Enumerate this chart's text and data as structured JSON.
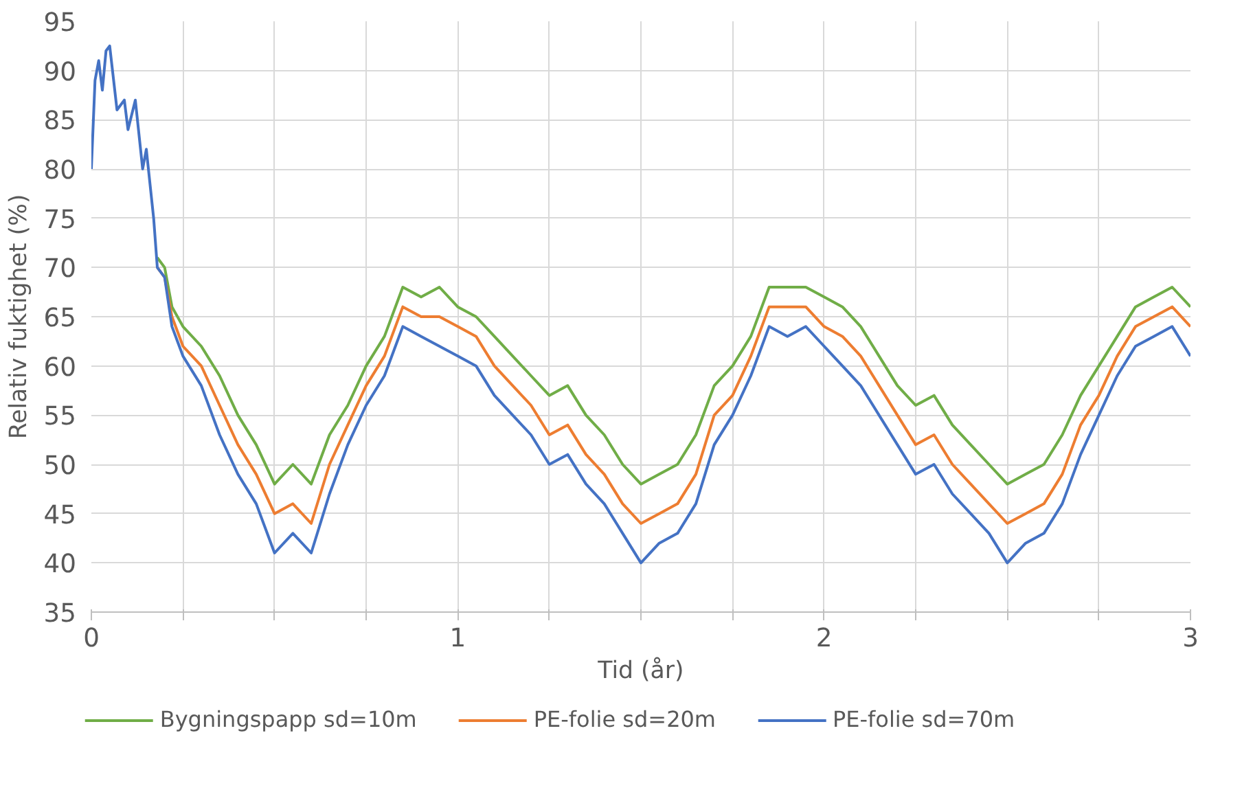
{
  "chart_data": {
    "type": "line",
    "xlabel": "Tid (år)",
    "ylabel": "Relativ fuktighet (%)",
    "x": [
      0,
      0.01,
      0.02,
      0.03,
      0.04,
      0.05,
      0.07,
      0.09,
      0.1,
      0.12,
      0.14,
      0.15,
      0.17,
      0.18,
      0.2,
      0.22,
      0.25,
      0.3,
      0.35,
      0.4,
      0.45,
      0.5,
      0.55,
      0.6,
      0.65,
      0.7,
      0.75,
      0.8,
      0.85,
      0.9,
      0.95,
      1.0,
      1.05,
      1.1,
      1.15,
      1.2,
      1.25,
      1.3,
      1.35,
      1.4,
      1.45,
      1.5,
      1.55,
      1.6,
      1.65,
      1.7,
      1.75,
      1.8,
      1.85,
      1.9,
      1.95,
      2.0,
      2.05,
      2.1,
      2.15,
      2.2,
      2.25,
      2.3,
      2.35,
      2.4,
      2.45,
      2.5,
      2.55,
      2.6,
      2.65,
      2.7,
      2.75,
      2.8,
      2.85,
      2.9,
      2.95,
      3.0
    ],
    "series": [
      {
        "name": "Bygningspapp sd=10m",
        "color": "#70ad47",
        "values": [
          null,
          null,
          null,
          null,
          null,
          null,
          null,
          null,
          null,
          null,
          null,
          null,
          null,
          71,
          70,
          66,
          64,
          62,
          59,
          55,
          52,
          48,
          50,
          48,
          53,
          56,
          60,
          63,
          68,
          67,
          68,
          66,
          65,
          63,
          61,
          59,
          57,
          58,
          55,
          53,
          50,
          48,
          49,
          50,
          53,
          58,
          60,
          63,
          68,
          68,
          68,
          67,
          66,
          64,
          61,
          58,
          56,
          57,
          54,
          52,
          50,
          48,
          49,
          50,
          53,
          57,
          60,
          63,
          66,
          67,
          68,
          66
        ]
      },
      {
        "name": "PE-folie sd=20m",
        "color": "#ed7d31",
        "values": [
          null,
          null,
          null,
          null,
          null,
          null,
          null,
          null,
          null,
          null,
          null,
          null,
          null,
          70,
          69,
          65,
          62,
          60,
          56,
          52,
          49,
          45,
          46,
          44,
          50,
          54,
          58,
          61,
          66,
          65,
          65,
          64,
          63,
          60,
          58,
          56,
          53,
          54,
          51,
          49,
          46,
          44,
          45,
          46,
          49,
          55,
          57,
          61,
          66,
          66,
          66,
          64,
          63,
          61,
          58,
          55,
          52,
          53,
          50,
          48,
          46,
          44,
          45,
          46,
          49,
          54,
          57,
          61,
          64,
          65,
          66,
          64
        ]
      },
      {
        "name": "PE-folie sd=70m",
        "color": "#4472c4",
        "values": [
          80,
          89,
          91,
          88,
          92,
          92.5,
          86,
          87,
          84,
          87,
          80,
          82,
          75,
          70,
          69,
          64,
          61,
          58,
          53,
          49,
          46,
          41,
          43,
          41,
          47,
          52,
          56,
          59,
          64,
          63,
          62,
          61,
          60,
          57,
          55,
          53,
          50,
          51,
          48,
          46,
          43,
          40,
          42,
          43,
          46,
          52,
          55,
          59,
          64,
          63,
          64,
          62,
          60,
          58,
          55,
          52,
          49,
          50,
          47,
          45,
          43,
          40,
          42,
          43,
          46,
          51,
          55,
          59,
          62,
          63,
          64,
          61
        ]
      }
    ],
    "xlim": [
      0,
      3
    ],
    "ylim": [
      35,
      95
    ],
    "xticks": [
      0,
      {
        "value": 0.25,
        "label": null
      },
      {
        "value": 0.5,
        "label": null
      },
      {
        "value": 0.75,
        "label": null
      },
      1,
      {
        "value": 1.25,
        "label": null
      },
      {
        "value": 1.5,
        "label": null
      },
      {
        "value": 1.75,
        "label": null
      },
      2,
      {
        "value": 2.25,
        "label": null
      },
      {
        "value": 2.5,
        "label": null
      },
      {
        "value": 2.75,
        "label": null
      },
      3
    ],
    "yticks": [
      35,
      40,
      45,
      50,
      55,
      60,
      65,
      70,
      75,
      80,
      85,
      90,
      95
    ],
    "grid": true,
    "legend": "bottom",
    "marker": "none",
    "line_style": "solid"
  }
}
